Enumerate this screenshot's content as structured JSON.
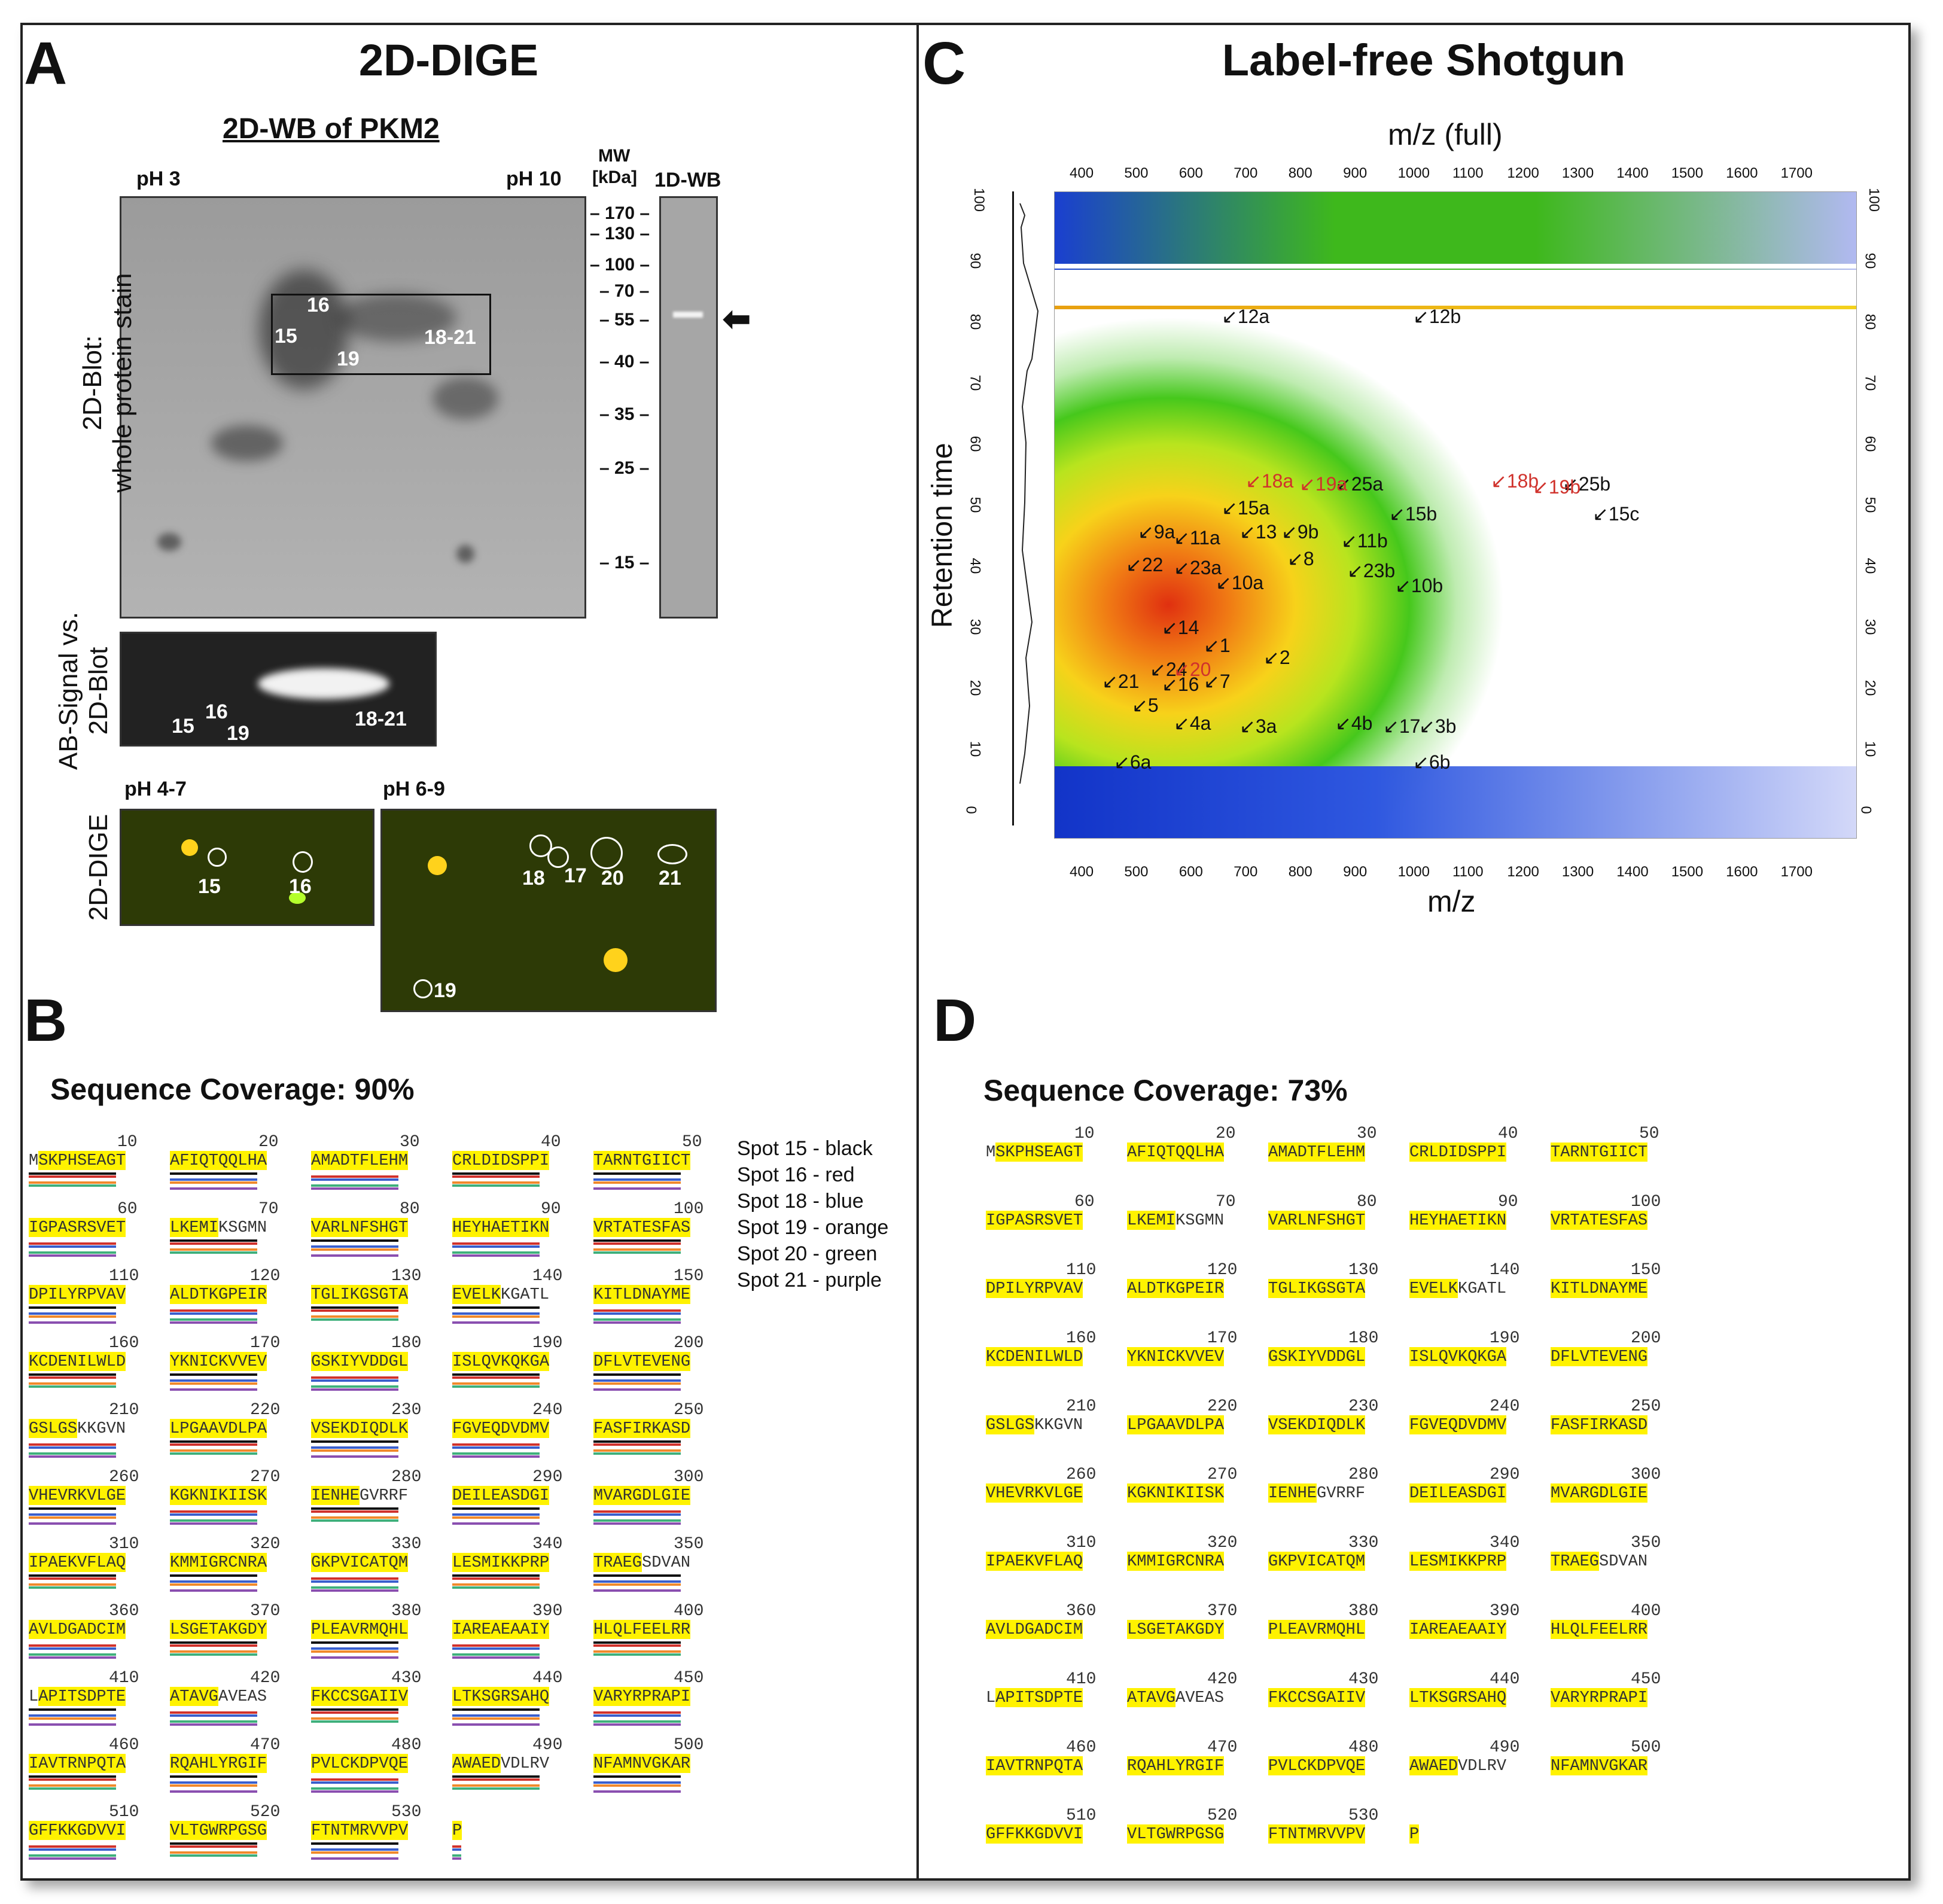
{
  "panelA": {
    "letter": "A",
    "title": "2D-DIGE",
    "subtitle": "2D-WB of PKM2",
    "ph_left": "pH 3",
    "ph_right": "pH 10",
    "mw_header_1": "MW",
    "mw_header_2": "[kDa]",
    "wb_1d": "1D-WB",
    "mw_ticks": [
      "170",
      "130",
      "100",
      "70",
      "55",
      "40",
      "35",
      "25",
      "15"
    ],
    "ylabel_blot_1": "2D-Blot:",
    "ylabel_blot_2": "whole protein stain",
    "ylabel_ab_1": "AB-Signal vs.",
    "ylabel_ab_2": "2D-Blot",
    "ylabel_dige": "2D-DIGE",
    "spots_blot": [
      "16",
      "15",
      "19",
      "18-21"
    ],
    "spots_ab": [
      "16",
      "15",
      "19",
      "18-21"
    ],
    "ph_47": "pH 4-7",
    "ph_69": "pH 6-9",
    "dige_spots_47": [
      "15",
      "16"
    ],
    "dige_spots_69": [
      "18",
      "17",
      "20",
      "21",
      "19"
    ]
  },
  "panelB": {
    "letter": "B",
    "coverage": "Sequence Coverage: 90%",
    "legend": [
      "Spot 15 - black",
      "Spot 16 - red",
      "Spot 18 - blue",
      "Spot 19 - orange",
      "Spot 20 - green",
      "Spot 21 - purple"
    ]
  },
  "panelC": {
    "letter": "C",
    "title": "Label-free Shotgun",
    "top_axis_label": "m/z (full)",
    "bottom_axis_label": "m/z",
    "yaxis_label": "Retention time",
    "mz_ticks": [
      "400",
      "500",
      "600",
      "700",
      "800",
      "900",
      "1000",
      "1100",
      "1200",
      "1300",
      "1400",
      "1500",
      "1600",
      "1700"
    ],
    "rt_ticks": [
      "100",
      "90",
      "80",
      "70",
      "60",
      "50",
      "40",
      "30",
      "20",
      "10",
      "0"
    ],
    "annotations_black": [
      "12a",
      "12b",
      "25a",
      "25b",
      "15a",
      "15b",
      "15c",
      "9a",
      "11a",
      "13",
      "9b",
      "11b",
      "22",
      "23a",
      "8",
      "23b",
      "10a",
      "10b",
      "14",
      "1",
      "2",
      "24",
      "21",
      "16",
      "7",
      "5",
      "4a",
      "3a",
      "4b",
      "17",
      "3b",
      "6a",
      "6b"
    ],
    "annotations_red": [
      "18a",
      "19a",
      "18b",
      "19b",
      "20"
    ]
  },
  "panelD": {
    "letter": "D",
    "coverage": "Sequence Coverage: 73%"
  },
  "sequence": {
    "positions": [
      "10",
      "20",
      "30",
      "40",
      "50",
      "60",
      "70",
      "80",
      "90",
      "100",
      "110",
      "120",
      "130",
      "140",
      "150",
      "160",
      "170",
      "180",
      "190",
      "200",
      "210",
      "220",
      "230",
      "240",
      "250",
      "260",
      "270",
      "280",
      "290",
      "300",
      "310",
      "320",
      "330",
      "340",
      "350",
      "360",
      "370",
      "380",
      "390",
      "400",
      "410",
      "420",
      "430",
      "440",
      "450",
      "460",
      "470",
      "480",
      "490",
      "500",
      "510",
      "520",
      "530"
    ],
    "chunks": [
      "MSKPHSEAGT",
      "AFIQTQQLHA",
      "AMADTFLEHM",
      "CRLDIDSPPI",
      "TARNTGIICT",
      "IGPASRSVET",
      "LKEMIKSGMN",
      "VARLNFSHGT",
      "HEYHAETIKN",
      "VRTATESFAS",
      "DPILYRPVAV",
      "ALDTKGPEIR",
      "TGLIKGSGTA",
      "EVELKKGATL",
      "KITLDNAYME",
      "KCDENILWLD",
      "YKNICKVVEV",
      "GSKIYVDDGL",
      "ISLQVKQKGA",
      "DFLVTEVENG",
      "GSLGSKKGVN",
      "LPGAAVDLPA",
      "VSEKDIQDLK",
      "FGVEQDVDMV",
      "FASFIRKASD",
      "VHEVRKVLGE",
      "KGKNIKIISK",
      "IENHEGVRRF",
      "DEILEASDGI",
      "MVARGDLGIE",
      "IPAEKVFLAQ",
      "KMMIGRCNRA",
      "GKPVICATQM",
      "LESMIKKPRP",
      "TRAEGSDVAN",
      "AVLDGADCIM",
      "LSGETAKGDY",
      "PLEAVRMQHL",
      "IAREAEAAIY",
      "HLQLFEELRR",
      "LAPITSDPTE",
      "ATAVGAVEAS",
      "FKCCSGAIIV",
      "LTKSGRSAHQ",
      "VARYRPRAPI",
      "IAVTRNPQTA",
      "RQAHLYRGIF",
      "PVLCKDPVQE",
      "AWAEDVDLRV",
      "NFAMNVGKAR",
      "GFFKKGDVVI",
      "VLTGWRPGSG",
      "FTNTMRVVPV",
      "P"
    ]
  }
}
